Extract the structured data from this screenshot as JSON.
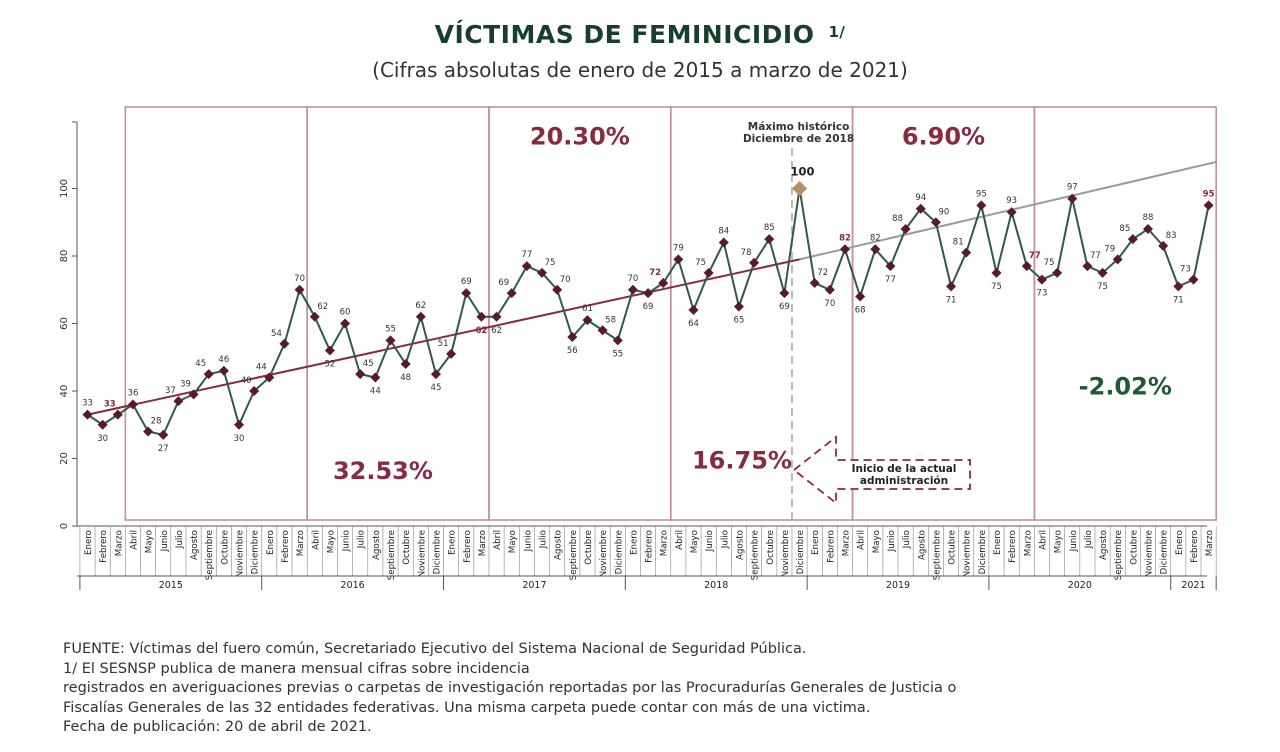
{
  "header": {
    "title": "VÍCTIMAS DE FEMINICIDIO",
    "title_note": "1/",
    "subtitle": "(Cifras absolutas de enero de 2015 a marzo de 2021)"
  },
  "colors": {
    "line": "#2f5b45",
    "marker": "#5a1a2b",
    "trend": "#8a2a40",
    "projection": "#9a9a9a",
    "frame": "#c48f9b",
    "percent_red": "#8a2a40",
    "percent_green": "#1f5a36",
    "max_marker": "#b79066"
  },
  "chart_data": {
    "type": "line",
    "title": "VÍCTIMAS DE FEMINICIDIO",
    "subtitle": "(Cifras absolutas de enero de 2015 a marzo de 2021)",
    "ylim": [
      0,
      120
    ],
    "y_ticks": [
      "0",
      "20",
      "40",
      "60",
      "80",
      "100"
    ],
    "grid": false,
    "months": [
      "Enero",
      "Febrero",
      "Marzo",
      "Abril",
      "Mayo",
      "Junio",
      "Julio",
      "Agosto",
      "Septiembre",
      "Octubre",
      "Noviembre",
      "Diciembre",
      "Enero",
      "Febrero",
      "Marzo",
      "Abril",
      "Mayo",
      "Junio",
      "Julio",
      "Agosto",
      "Septiembre",
      "Octubre",
      "Noviembre",
      "Diciembre",
      "Enero",
      "Febrero",
      "Marzo",
      "Abril",
      "Mayo",
      "Junio",
      "Julio",
      "Agosto",
      "Septiembre",
      "Octubre",
      "Noviembre",
      "Diciembre",
      "Enero",
      "Febrero",
      "Marzo",
      "Abril",
      "Mayo",
      "Junio",
      "Julio",
      "Agosto",
      "Septiembre",
      "Octubre",
      "Noviembre",
      "Diciembre",
      "Enero",
      "Febrero",
      "Marzo",
      "Abril",
      "Mayo",
      "Junio",
      "Julio",
      "Agosto",
      "Septiembre",
      "Octubre",
      "Noviembre",
      "Diciembre",
      "Enero",
      "Febrero",
      "Marzo",
      "Abril",
      "Mayo",
      "Junio",
      "Julio",
      "Agosto",
      "Septiembre",
      "Octubre",
      "Noviembre",
      "Diciembre",
      "Enero",
      "Febrero",
      "Marzo"
    ],
    "years": [
      {
        "label": "2015",
        "start": 0,
        "end": 11
      },
      {
        "label": "2016",
        "start": 12,
        "end": 23
      },
      {
        "label": "2017",
        "start": 24,
        "end": 35
      },
      {
        "label": "2018",
        "start": 36,
        "end": 47
      },
      {
        "label": "2019",
        "start": 48,
        "end": 59
      },
      {
        "label": "2020",
        "start": 60,
        "end": 71
      },
      {
        "label": "2021",
        "start": 72,
        "end": 74
      }
    ],
    "values": [
      33,
      30,
      33,
      36,
      28,
      27,
      37,
      39,
      45,
      46,
      30,
      40,
      44,
      54,
      70,
      62,
      52,
      60,
      45,
      44,
      55,
      48,
      62,
      45,
      51,
      69,
      62,
      62,
      69,
      77,
      75,
      70,
      56,
      61,
      58,
      55,
      70,
      69,
      72,
      79,
      64,
      75,
      84,
      65,
      78,
      85,
      69,
      100,
      72,
      70,
      82,
      68,
      82,
      77,
      88,
      94,
      90,
      71,
      81,
      95,
      75,
      93,
      77,
      73,
      75,
      97,
      77,
      75,
      79,
      85,
      88,
      83,
      71,
      73,
      95
    ],
    "data_labels": [
      "33",
      "30",
      "33",
      "36",
      "28",
      "27",
      "37",
      "39",
      "45",
      "46",
      "30",
      "40",
      "44",
      "54",
      "70",
      "62",
      "52",
      "60",
      "45",
      "44",
      "55",
      "48",
      "62",
      "45",
      "51",
      "69",
      "62",
      "62",
      "69",
      "77",
      "75",
      "70",
      "56",
      "61",
      "58",
      "55",
      "70",
      "69",
      "72",
      "79",
      "64",
      "75",
      "84",
      "65",
      "78",
      "85",
      "69",
      "100",
      "72",
      "70",
      "82",
      "68",
      "82",
      "77",
      "88",
      "94",
      "90",
      "71",
      "81",
      "95",
      "75",
      "93",
      "77",
      "73",
      "75",
      "97",
      "77",
      "75",
      "79",
      "85",
      "88",
      "83",
      "71",
      "73",
      "95"
    ],
    "highlight_indices": [
      2,
      26,
      38,
      50,
      62,
      74
    ],
    "max_index": 47,
    "trend_line": {
      "from": [
        0,
        33
      ],
      "to": [
        47,
        79
      ]
    },
    "projection_line": {
      "from": [
        47,
        79
      ],
      "to": [
        74,
        107
      ]
    },
    "period_boxes": [
      {
        "label": "2015",
        "start": 2.5,
        "end": 14.5
      },
      {
        "label": "2016",
        "start": 14.5,
        "end": 26.5
      },
      {
        "label": "2017",
        "start": 26.5,
        "end": 38.5
      },
      {
        "label": "2018",
        "start": 38.5,
        "end": 50.5
      },
      {
        "label": "2019",
        "start": 50.5,
        "end": 62.5
      },
      {
        "label": "2020",
        "start": 62.5,
        "end": 74.5
      }
    ],
    "percentages": [
      {
        "text": "32.53%",
        "color": "red",
        "x": 19.5,
        "y": 14
      },
      {
        "text": "20.30%",
        "color": "red",
        "x": 32.5,
        "y": 113
      },
      {
        "text": "16.75%",
        "color": "red",
        "x": 43.2,
        "y": 17
      },
      {
        "text": "6.90%",
        "color": "red",
        "x": 56.5,
        "y": 113
      },
      {
        "text": "-2.02%",
        "color": "green",
        "x": 68.5,
        "y": 39
      }
    ],
    "annotations": {
      "max_line1": "Máximo histórico",
      "max_line2": "Diciembre de 2018",
      "admin_line1": "Inicio de la actual",
      "admin_line2": "administración"
    }
  },
  "notes": [
    "FUENTE: Víctimas del fuero común, Secretariado Ejecutivo del Sistema Nacional de Seguridad Pública.",
    "1/ El SESNSP publica de manera mensual cifras sobre incidencia",
    "registrados en averiguaciones previas o carpetas de investigación reportadas por las Procuradurías Generales de Justicia o",
    "Fiscalías Generales de las 32 entidades federativas. Una misma carpeta puede contar con más de una victima.",
    "Fecha de publicación: 20 de abril de 2021."
  ]
}
